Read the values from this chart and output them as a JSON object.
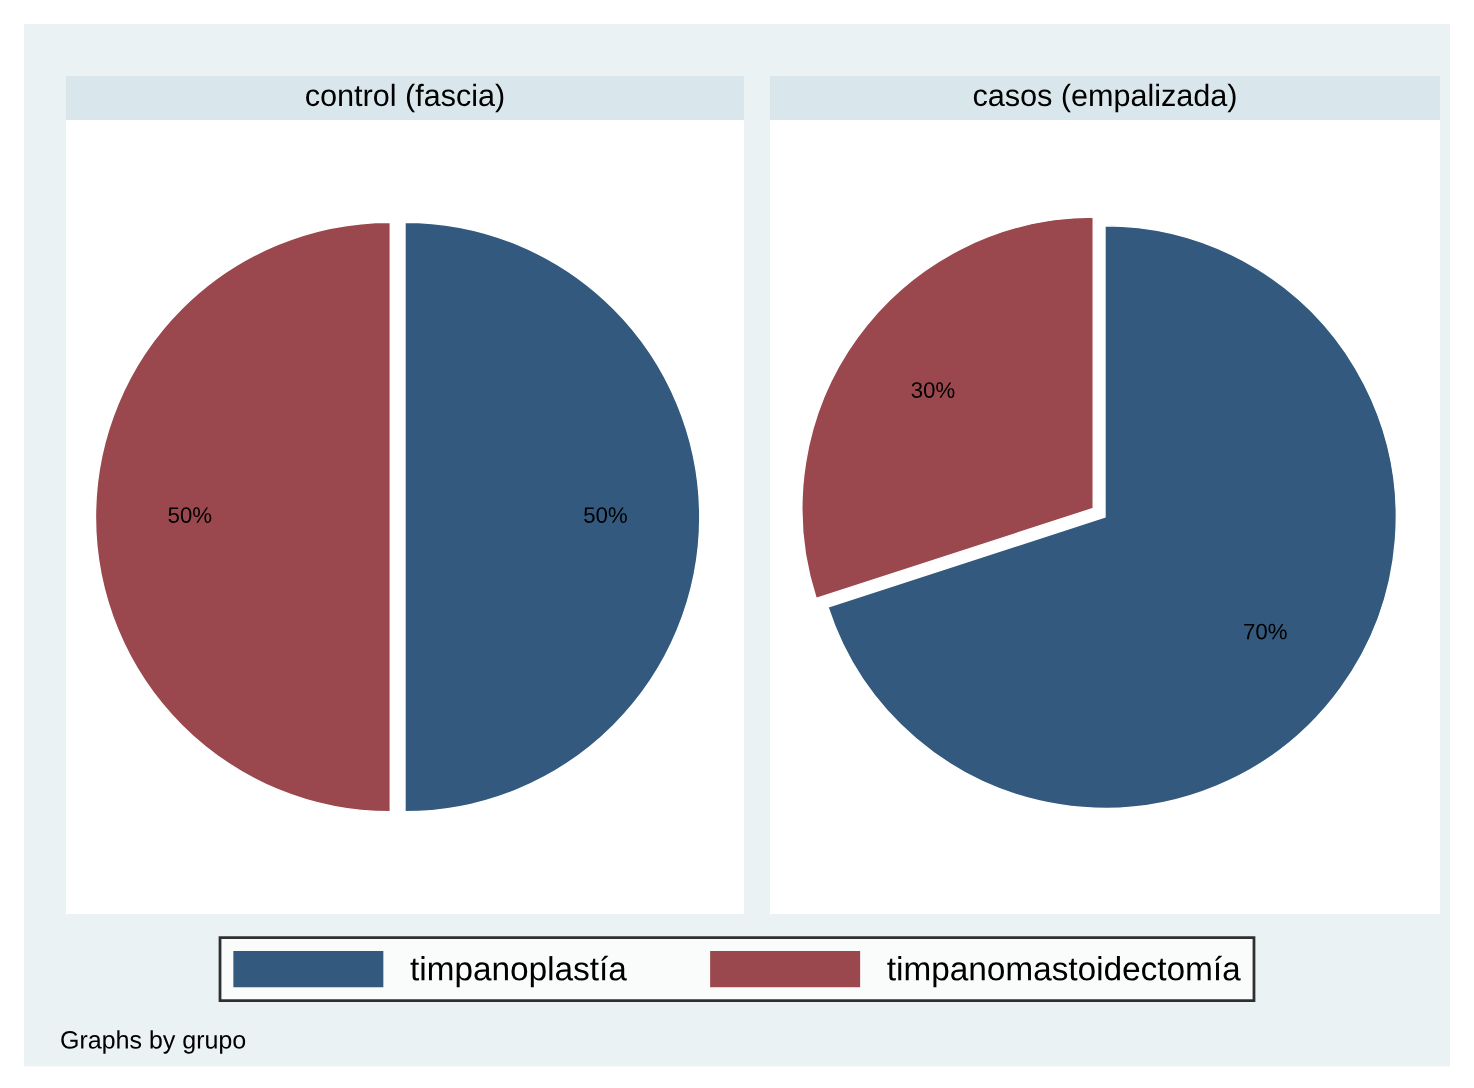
{
  "chart_data": [
    {
      "type": "pie",
      "title": "control (fascia)",
      "categories": [
        "timpanoplastía",
        "timpanomastoidectomía"
      ],
      "values": [
        50,
        50
      ],
      "colors": [
        "#335a7e",
        "#9a484d"
      ],
      "value_labels": [
        "50%",
        "50%"
      ],
      "legend": "bottom",
      "annotations": [
        "Graphs by grupo"
      ]
    },
    {
      "type": "pie",
      "title": "casos (empalizada)",
      "categories": [
        null,
        null
      ],
      "values": [
        70,
        30
      ],
      "colors": [
        "#335a7e",
        "#9a484d"
      ],
      "value_labels": [
        "70%",
        "30%"
      ]
    }
  ]
}
